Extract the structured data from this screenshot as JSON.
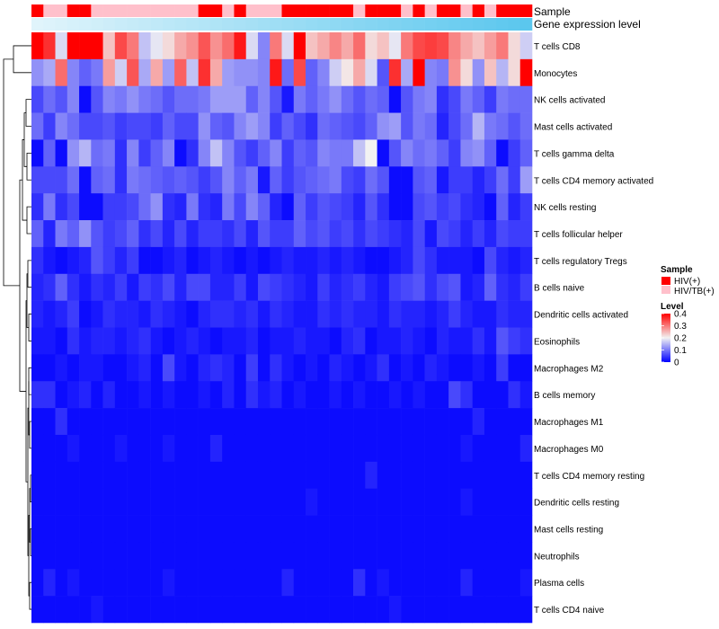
{
  "chart_data": {
    "type": "heatmap",
    "title": "",
    "annotation_rows": [
      "Sample",
      "Gene expression level"
    ],
    "rows": [
      "T cells CD8",
      "Monocytes",
      "NK cells activated",
      "Mast cells activated",
      "T cells gamma delta",
      "T cells CD4 memory activated",
      "NK cells resting",
      "T cells follicular helper",
      "T cells regulatory  Tregs",
      "B cells naive",
      "Dendritic cells activated",
      "Eosinophils",
      "Macrophages M2",
      "B cells memory",
      "Macrophages M1",
      "Macrophages M0",
      "T cells CD4 memory resting",
      "Dendritic cells resting",
      "Mast cells resting",
      "Neutrophils",
      "Plasma cells",
      "T cells CD4 naive"
    ],
    "n_columns": 42,
    "sample_groups": [
      "HIV(+)",
      "HIV/TB(+)",
      "HIV/TB(+)",
      "HIV(+)",
      "HIV(+)",
      "HIV/TB(+)",
      "HIV/TB(+)",
      "HIV/TB(+)",
      "HIV/TB(+)",
      "HIV/TB(+)",
      "HIV/TB(+)",
      "HIV/TB(+)",
      "HIV/TB(+)",
      "HIV/TB(+)",
      "HIV(+)",
      "HIV(+)",
      "HIV/TB(+)",
      "HIV(+)",
      "HIV/TB(+)",
      "HIV/TB(+)",
      "HIV/TB(+)",
      "HIV(+)",
      "HIV(+)",
      "HIV(+)",
      "HIV(+)",
      "HIV(+)",
      "HIV(+)",
      "HIV/TB(+)",
      "HIV(+)",
      "HIV(+)",
      "HIV(+)",
      "HIV/TB(+)",
      "HIV(+)",
      "HIV/TB(+)",
      "HIV(+)",
      "HIV(+)",
      "HIV/TB(+)",
      "HIV(+)",
      "HIV/TB(+)",
      "HIV(+)",
      "HIV(+)",
      "HIV(+)"
    ],
    "expression_gradient": [
      "#e0f4fb",
      "#5bc7ee"
    ],
    "values": [
      [
        0.4,
        0.36,
        0.18,
        0.4,
        0.4,
        0.4,
        0.24,
        0.34,
        0.3,
        0.16,
        0.19,
        0.22,
        0.26,
        0.28,
        0.33,
        0.28,
        0.31,
        0.38,
        0.18,
        0.11,
        0.3,
        0.18,
        0.4,
        0.24,
        0.26,
        0.29,
        0.26,
        0.31,
        0.22,
        0.24,
        0.19,
        0.3,
        0.34,
        0.35,
        0.34,
        0.29,
        0.26,
        0.24,
        0.27,
        0.3,
        0.22,
        0.17
      ],
      [
        0.12,
        0.14,
        0.31,
        0.11,
        0.08,
        0.1,
        0.27,
        0.17,
        0.33,
        0.14,
        0.26,
        0.13,
        0.32,
        0.16,
        0.36,
        0.26,
        0.13,
        0.12,
        0.12,
        0.11,
        0.38,
        0.09,
        0.34,
        0.08,
        0.11,
        0.17,
        0.21,
        0.26,
        0.18,
        0.07,
        0.36,
        0.14,
        0.4,
        0.11,
        0.1,
        0.28,
        0.22,
        0.12,
        0.24,
        0.15,
        0.22,
        0.4
      ],
      [
        0.06,
        0.09,
        0.07,
        0.11,
        0.01,
        0.07,
        0.11,
        0.1,
        0.12,
        0.1,
        0.09,
        0.07,
        0.09,
        0.09,
        0.1,
        0.13,
        0.13,
        0.13,
        0.08,
        0.11,
        0.07,
        0.02,
        0.1,
        0.08,
        0.1,
        0.12,
        0.09,
        0.07,
        0.09,
        0.08,
        0.01,
        0.07,
        0.1,
        0.11,
        0.04,
        0.06,
        0.1,
        0.08,
        0.05,
        0.1,
        0.09,
        0.09
      ],
      [
        0.09,
        0.05,
        0.11,
        0.09,
        0.06,
        0.06,
        0.07,
        0.05,
        0.06,
        0.06,
        0.05,
        0.08,
        0.06,
        0.06,
        0.12,
        0.08,
        0.07,
        0.11,
        0.13,
        0.11,
        0.05,
        0.08,
        0.06,
        0.04,
        0.09,
        0.08,
        0.07,
        0.06,
        0.08,
        0.12,
        0.13,
        0.07,
        0.1,
        0.09,
        0.03,
        0.06,
        0.09,
        0.15,
        0.1,
        0.09,
        0.07,
        0.09
      ],
      [
        0.01,
        0.08,
        0.01,
        0.12,
        0.15,
        0.09,
        0.1,
        0.04,
        0.11,
        0.05,
        0.08,
        0.11,
        0.01,
        0.04,
        0.11,
        0.16,
        0.11,
        0.07,
        0.05,
        0.08,
        0.11,
        0.05,
        0.08,
        0.07,
        0.11,
        0.1,
        0.1,
        0.16,
        0.2,
        0.01,
        0.07,
        0.11,
        0.09,
        0.1,
        0.08,
        0.05,
        0.11,
        0.12,
        0.08,
        0.01,
        0.05,
        0.08
      ],
      [
        0.06,
        0.06,
        0.06,
        0.09,
        0.01,
        0.08,
        0.09,
        0.04,
        0.1,
        0.09,
        0.08,
        0.07,
        0.08,
        0.07,
        0.05,
        0.07,
        0.11,
        0.08,
        0.1,
        0.02,
        0.08,
        0.05,
        0.07,
        0.08,
        0.09,
        0.1,
        0.06,
        0.05,
        0.09,
        0.07,
        0.01,
        0.01,
        0.07,
        0.08,
        0.02,
        0.05,
        0.05,
        0.03,
        0.05,
        0.09,
        0.05,
        0.13
      ],
      [
        0.04,
        0.1,
        0.04,
        0.06,
        0.01,
        0.01,
        0.05,
        0.05,
        0.06,
        0.09,
        0.12,
        0.04,
        0.03,
        0.1,
        0.04,
        0.03,
        0.1,
        0.06,
        0.11,
        0.08,
        0.03,
        0.01,
        0.08,
        0.05,
        0.07,
        0.06,
        0.05,
        0.03,
        0.07,
        0.04,
        0.01,
        0.01,
        0.06,
        0.07,
        0.05,
        0.06,
        0.04,
        0.03,
        0.01,
        0.08,
        0.03,
        0.05
      ],
      [
        0.08,
        0.03,
        0.1,
        0.08,
        0.12,
        0.07,
        0.05,
        0.06,
        0.08,
        0.04,
        0.06,
        0.03,
        0.06,
        0.03,
        0.05,
        0.05,
        0.04,
        0.06,
        0.03,
        0.07,
        0.05,
        0.05,
        0.08,
        0.06,
        0.07,
        0.05,
        0.06,
        0.04,
        0.06,
        0.05,
        0.04,
        0.03,
        0.06,
        0.02,
        0.06,
        0.05,
        0.03,
        0.05,
        0.03,
        0.06,
        0.05,
        0.05
      ],
      [
        0.04,
        0.02,
        0.01,
        0.02,
        0.03,
        0.07,
        0.05,
        0.03,
        0.05,
        0.01,
        0.01,
        0.02,
        0.03,
        0.01,
        0.02,
        0.03,
        0.02,
        0.01,
        0.02,
        0.01,
        0.02,
        0.03,
        0.02,
        0.02,
        0.03,
        0.02,
        0.03,
        0.02,
        0.01,
        0.01,
        0.02,
        0.03,
        0.06,
        0.04,
        0.02,
        0.02,
        0.02,
        0.01,
        0.06,
        0.03,
        0.02,
        0.03
      ],
      [
        0.03,
        0.04,
        0.08,
        0.04,
        0.02,
        0.04,
        0.03,
        0.05,
        0.02,
        0.05,
        0.04,
        0.06,
        0.03,
        0.06,
        0.06,
        0.03,
        0.03,
        0.05,
        0.02,
        0.06,
        0.05,
        0.04,
        0.03,
        0.02,
        0.05,
        0.03,
        0.04,
        0.05,
        0.03,
        0.02,
        0.05,
        0.06,
        0.07,
        0.04,
        0.06,
        0.07,
        0.02,
        0.03,
        0.08,
        0.04,
        0.03,
        0.05
      ],
      [
        0.03,
        0.02,
        0.03,
        0.05,
        0.01,
        0.02,
        0.04,
        0.03,
        0.03,
        0.02,
        0.04,
        0.03,
        0.02,
        0.01,
        0.03,
        0.04,
        0.04,
        0.03,
        0.04,
        0.02,
        0.04,
        0.03,
        0.02,
        0.02,
        0.04,
        0.03,
        0.04,
        0.03,
        0.03,
        0.02,
        0.04,
        0.03,
        0.03,
        0.02,
        0.03,
        0.05,
        0.03,
        0.02,
        0.02,
        0.04,
        0.03,
        0.03
      ],
      [
        0.02,
        0.02,
        0.01,
        0.04,
        0.02,
        0.03,
        0.03,
        0.02,
        0.03,
        0.04,
        0.02,
        0.01,
        0.02,
        0.03,
        0.02,
        0.01,
        0.02,
        0.02,
        0.03,
        0.01,
        0.02,
        0.02,
        0.03,
        0.02,
        0.02,
        0.01,
        0.03,
        0.04,
        0.01,
        0.02,
        0.02,
        0.03,
        0.02,
        0.01,
        0.03,
        0.02,
        0.02,
        0.04,
        0.02,
        0.07,
        0.05,
        0.04
      ],
      [
        0.01,
        0.01,
        0.02,
        0.01,
        0.02,
        0.02,
        0.01,
        0.01,
        0.02,
        0.03,
        0.01,
        0.06,
        0.02,
        0.01,
        0.03,
        0.04,
        0.03,
        0.01,
        0.05,
        0.01,
        0.04,
        0.02,
        0.01,
        0.02,
        0.01,
        0.03,
        0.02,
        0.01,
        0.02,
        0.04,
        0.01,
        0.02,
        0.01,
        0.03,
        0.02,
        0.01,
        0.01,
        0.02,
        0.01,
        0.05,
        0.01,
        0.01
      ],
      [
        0.04,
        0.04,
        0.01,
        0.02,
        0.03,
        0.01,
        0.03,
        0.01,
        0.01,
        0.02,
        0.01,
        0.02,
        0.01,
        0.01,
        0.02,
        0.01,
        0.03,
        0.01,
        0.04,
        0.02,
        0.03,
        0.01,
        0.02,
        0.01,
        0.01,
        0.02,
        0.01,
        0.02,
        0.01,
        0.01,
        0.02,
        0.01,
        0.02,
        0.01,
        0.01,
        0.06,
        0.04,
        0.01,
        0.01,
        0.01,
        0.04,
        0.02
      ],
      [
        0.01,
        0.01,
        0.04,
        0.01,
        0.01,
        0.01,
        0.01,
        0.01,
        0.01,
        0.01,
        0.01,
        0.01,
        0.01,
        0.01,
        0.01,
        0.01,
        0.01,
        0.01,
        0.01,
        0.01,
        0.01,
        0.01,
        0.01,
        0.01,
        0.01,
        0.01,
        0.01,
        0.01,
        0.01,
        0.01,
        0.01,
        0.01,
        0.01,
        0.01,
        0.01,
        0.01,
        0.01,
        0.03,
        0.01,
        0.01,
        0.01,
        0.01
      ],
      [
        0.01,
        0.01,
        0.01,
        0.02,
        0.01,
        0.01,
        0.01,
        0.02,
        0.01,
        0.01,
        0.01,
        0.02,
        0.01,
        0.01,
        0.01,
        0.03,
        0.01,
        0.01,
        0.01,
        0.01,
        0.01,
        0.01,
        0.01,
        0.01,
        0.01,
        0.01,
        0.01,
        0.01,
        0.01,
        0.01,
        0.01,
        0.01,
        0.01,
        0.01,
        0.01,
        0.01,
        0.02,
        0.01,
        0.01,
        0.01,
        0.01,
        0.03
      ],
      [
        0.01,
        0.01,
        0.01,
        0.01,
        0.01,
        0.01,
        0.01,
        0.01,
        0.01,
        0.01,
        0.01,
        0.01,
        0.01,
        0.01,
        0.01,
        0.01,
        0.01,
        0.01,
        0.01,
        0.01,
        0.01,
        0.01,
        0.01,
        0.01,
        0.01,
        0.01,
        0.01,
        0.01,
        0.03,
        0.01,
        0.01,
        0.01,
        0.01,
        0.01,
        0.01,
        0.01,
        0.01,
        0.01,
        0.01,
        0.01,
        0.01,
        0.01
      ],
      [
        0.01,
        0.01,
        0.01,
        0.01,
        0.01,
        0.01,
        0.01,
        0.01,
        0.01,
        0.01,
        0.01,
        0.01,
        0.01,
        0.01,
        0.01,
        0.01,
        0.01,
        0.01,
        0.01,
        0.01,
        0.01,
        0.01,
        0.01,
        0.02,
        0.01,
        0.01,
        0.01,
        0.01,
        0.01,
        0.01,
        0.01,
        0.01,
        0.01,
        0.01,
        0.01,
        0.01,
        0.02,
        0.01,
        0.01,
        0.01,
        0.01,
        0.01
      ],
      [
        0.01,
        0.01,
        0.01,
        0.01,
        0.01,
        0.01,
        0.01,
        0.01,
        0.01,
        0.01,
        0.01,
        0.01,
        0.01,
        0.01,
        0.01,
        0.01,
        0.01,
        0.01,
        0.01,
        0.01,
        0.01,
        0.01,
        0.01,
        0.01,
        0.01,
        0.01,
        0.01,
        0.01,
        0.01,
        0.01,
        0.01,
        0.01,
        0.01,
        0.01,
        0.01,
        0.01,
        0.01,
        0.01,
        0.01,
        0.01,
        0.01,
        0.01
      ],
      [
        0.01,
        0.01,
        0.01,
        0.01,
        0.01,
        0.01,
        0.01,
        0.01,
        0.01,
        0.01,
        0.01,
        0.01,
        0.01,
        0.01,
        0.01,
        0.01,
        0.01,
        0.01,
        0.01,
        0.01,
        0.01,
        0.01,
        0.01,
        0.01,
        0.01,
        0.01,
        0.01,
        0.01,
        0.01,
        0.01,
        0.01,
        0.01,
        0.01,
        0.01,
        0.01,
        0.01,
        0.01,
        0.01,
        0.01,
        0.01,
        0.01,
        0.01
      ],
      [
        0.01,
        0.03,
        0.01,
        0.02,
        0.01,
        0.01,
        0.01,
        0.01,
        0.01,
        0.01,
        0.01,
        0.02,
        0.01,
        0.01,
        0.01,
        0.01,
        0.01,
        0.01,
        0.01,
        0.01,
        0.01,
        0.03,
        0.01,
        0.01,
        0.01,
        0.01,
        0.01,
        0.04,
        0.01,
        0.02,
        0.01,
        0.01,
        0.01,
        0.01,
        0.01,
        0.01,
        0.03,
        0.01,
        0.01,
        0.01,
        0.01,
        0.02
      ],
      [
        0.01,
        0.01,
        0.01,
        0.01,
        0.01,
        0.02,
        0.01,
        0.01,
        0.01,
        0.01,
        0.01,
        0.01,
        0.01,
        0.01,
        0.01,
        0.01,
        0.01,
        0.01,
        0.01,
        0.01,
        0.01,
        0.01,
        0.01,
        0.01,
        0.01,
        0.01,
        0.01,
        0.01,
        0.01,
        0.01,
        0.02,
        0.01,
        0.01,
        0.01,
        0.01,
        0.01,
        0.01,
        0.01,
        0.01,
        0.01,
        0.01,
        0.01
      ]
    ],
    "color_scale": {
      "stops": [
        0,
        0.2,
        0.4
      ],
      "colors": [
        "#0000ff",
        "#f2f2f2",
        "#ff0000"
      ]
    },
    "legend": {
      "sample_title": "Sample",
      "sample_entries": [
        {
          "label": "HIV(+)",
          "color": "#ff0000"
        },
        {
          "label": "HIV/TB(+)",
          "color": "#ffc0cb"
        }
      ],
      "level_title": "Level",
      "level_ticks": [
        "0.4",
        "0.3",
        "0.2",
        "0.1",
        "0"
      ],
      "level_tick_values": [
        0.4,
        0.3,
        0.2,
        0.1,
        0
      ],
      "placement": "right"
    }
  }
}
